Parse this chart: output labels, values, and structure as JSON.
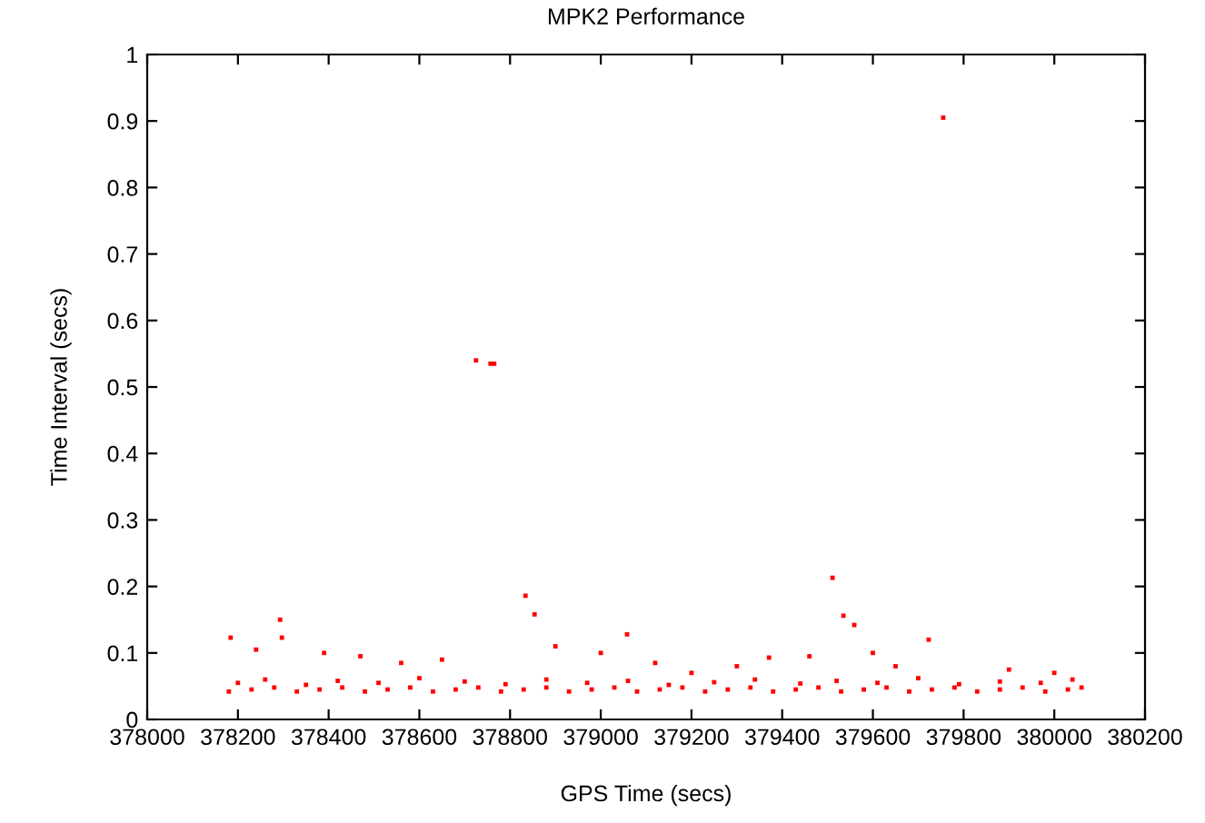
{
  "chart_data": {
    "type": "scatter",
    "title": "MPK2 Performance",
    "xlabel": "GPS Time (secs)",
    "ylabel": "Time Interval (secs)",
    "xlim": [
      378000,
      380200
    ],
    "ylim": [
      0,
      1
    ],
    "xticks": [
      378000,
      378200,
      378400,
      378600,
      378800,
      379000,
      379200,
      379400,
      379600,
      379800,
      380000,
      380200
    ],
    "yticks": [
      0,
      0.1,
      0.2,
      0.3,
      0.4,
      0.5,
      0.6,
      0.7,
      0.8,
      0.9,
      1
    ],
    "grid": false,
    "marker": "square",
    "series": [
      {
        "color": "#ff0000",
        "x": [
          378180,
          378230,
          378280,
          378330,
          378380,
          378430,
          378480,
          378530,
          378580,
          378630,
          378680,
          378730,
          378780,
          378830,
          378880,
          378930,
          378980,
          379030,
          379080,
          379130,
          379180,
          379230,
          379280,
          379330,
          379380,
          379430,
          379480,
          379530,
          379580,
          379630,
          379680,
          379730,
          379780,
          379830,
          379880,
          379930,
          379980,
          380030,
          380060,
          378200,
          378260,
          378350,
          378420,
          378510,
          378600,
          378700,
          378790,
          378880,
          378970,
          379060,
          379150,
          379250,
          379340,
          379440,
          379520,
          379610,
          379700,
          379790,
          379880,
          379970,
          380040,
          378184,
          378293,
          378297,
          378725,
          378757,
          378765,
          378834,
          378854,
          379058,
          379371,
          379511,
          379535,
          379559,
          379723,
          379755,
          378240,
          378390,
          378470,
          378560,
          378650,
          378900,
          379000,
          379120,
          379200,
          379300,
          379460,
          379600,
          379650,
          379900,
          380000
        ],
        "values": [
          0.042,
          0.045,
          0.048,
          0.042,
          0.045,
          0.048,
          0.042,
          0.045,
          0.048,
          0.042,
          0.045,
          0.048,
          0.042,
          0.045,
          0.048,
          0.042,
          0.045,
          0.048,
          0.042,
          0.045,
          0.048,
          0.042,
          0.045,
          0.048,
          0.042,
          0.045,
          0.048,
          0.042,
          0.045,
          0.048,
          0.042,
          0.045,
          0.048,
          0.042,
          0.045,
          0.048,
          0.042,
          0.045,
          0.048,
          0.055,
          0.06,
          0.052,
          0.058,
          0.055,
          0.062,
          0.057,
          0.053,
          0.06,
          0.055,
          0.058,
          0.052,
          0.056,
          0.06,
          0.054,
          0.058,
          0.055,
          0.062,
          0.053,
          0.057,
          0.055,
          0.06,
          0.123,
          0.15,
          0.123,
          0.54,
          0.535,
          0.535,
          0.186,
          0.158,
          0.128,
          0.093,
          0.213,
          0.156,
          0.142,
          0.12,
          0.905,
          0.105,
          0.1,
          0.095,
          0.085,
          0.09,
          0.11,
          0.1,
          0.085,
          0.07,
          0.08,
          0.095,
          0.1,
          0.08,
          0.075,
          0.07
        ]
      }
    ]
  }
}
